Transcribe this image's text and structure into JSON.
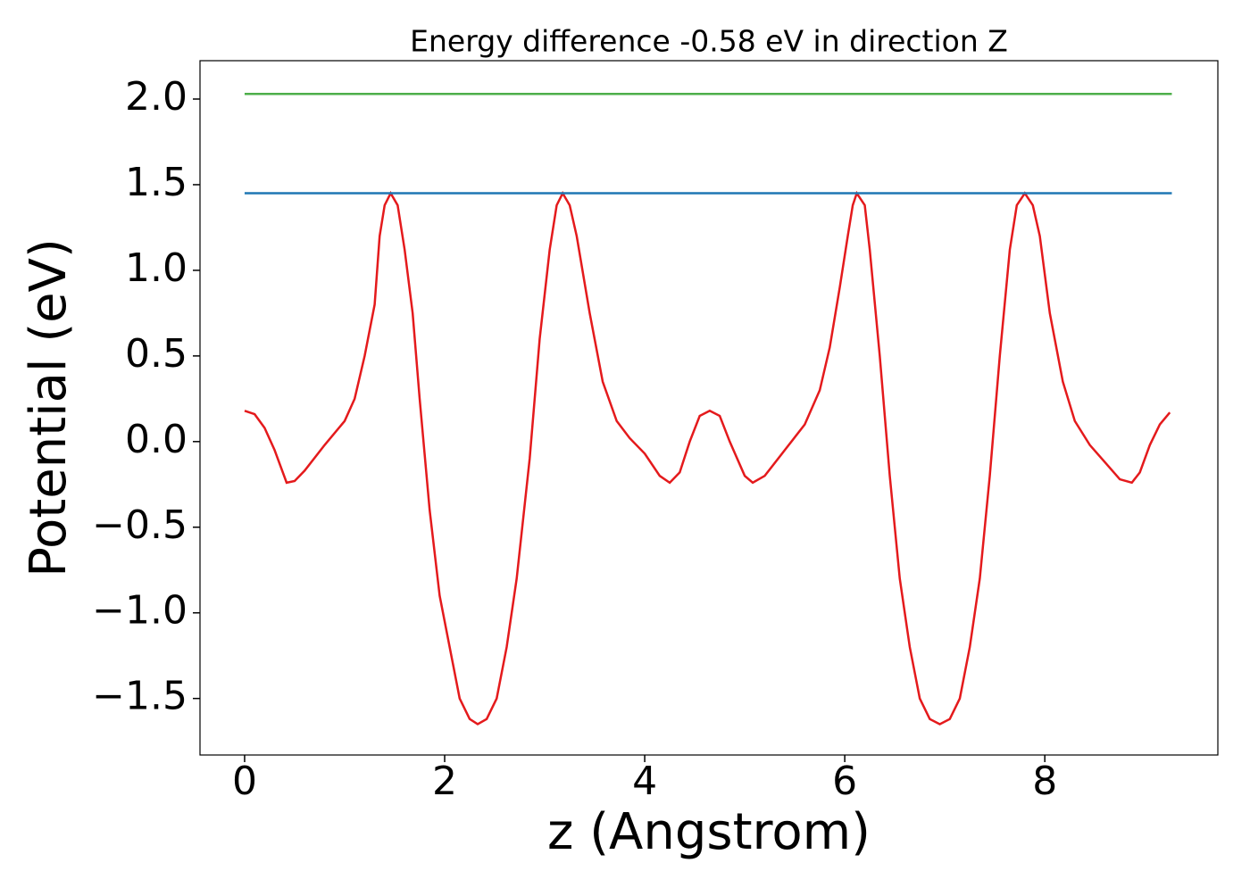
{
  "chart_data": {
    "type": "line",
    "title": "Energy difference -0.58 eV in direction Z",
    "xlabel": "z (Angstrom)",
    "ylabel": "Potential (eV)",
    "xlim": [
      -0.446,
      9.73
    ],
    "ylim": [
      -1.83,
      2.224
    ],
    "xticks": [
      0,
      2,
      4,
      6,
      8
    ],
    "yticks": [
      {
        "value": -1.5,
        "label": "−1.5"
      },
      {
        "value": -1.0,
        "label": "−1.0"
      },
      {
        "value": -0.5,
        "label": "−0.5"
      },
      {
        "value": 0,
        "label": "0.0"
      },
      {
        "value": 0.5,
        "label": "0.5"
      },
      {
        "value": 1.0,
        "label": "1.0"
      },
      {
        "value": 1.5,
        "label": "1.5"
      },
      {
        "value": 2.0,
        "label": "2.0"
      }
    ],
    "grid": false,
    "series": [
      {
        "color": "#e41a1c",
        "x": [
          0,
          0.1,
          0.2,
          0.3,
          0.42,
          0.5,
          0.6,
          0.8,
          1.0,
          1.1,
          1.2,
          1.3,
          1.35,
          1.4,
          1.46,
          1.53,
          1.6,
          1.68,
          1.75,
          1.85,
          1.95,
          2.05,
          2.15,
          2.25,
          2.33,
          2.42,
          2.52,
          2.62,
          2.72,
          2.85,
          2.95,
          3.05,
          3.12,
          3.18,
          3.25,
          3.32,
          3.45,
          3.58,
          3.72,
          3.85,
          4.0,
          4.15,
          4.25,
          4.35,
          4.45,
          4.55,
          4.65,
          4.75,
          4.85,
          5.0,
          5.08,
          5.2,
          5.4,
          5.6,
          5.75,
          5.85,
          5.95,
          6.03,
          6.08,
          6.12,
          6.2,
          6.25,
          6.35,
          6.45,
          6.55,
          6.65,
          6.75,
          6.85,
          6.95,
          7.05,
          7.15,
          7.25,
          7.35,
          7.45,
          7.55,
          7.65,
          7.72,
          7.8,
          7.88,
          7.95,
          8.05,
          8.18,
          8.3,
          8.45,
          8.6,
          8.75,
          8.87,
          8.95,
          9.05,
          9.15,
          9.25
        ],
        "values": [
          0.18,
          0.16,
          0.08,
          -0.05,
          -0.24,
          -0.23,
          -0.17,
          -0.02,
          0.12,
          0.25,
          0.5,
          0.8,
          1.2,
          1.38,
          1.45,
          1.38,
          1.12,
          0.75,
          0.25,
          -0.4,
          -0.9,
          -1.2,
          -1.5,
          -1.62,
          -1.65,
          -1.62,
          -1.5,
          -1.2,
          -0.8,
          -0.1,
          0.6,
          1.12,
          1.38,
          1.45,
          1.38,
          1.2,
          0.75,
          0.35,
          0.12,
          0.02,
          -0.07,
          -0.2,
          -0.24,
          -0.18,
          0.0,
          0.15,
          0.18,
          0.15,
          0.0,
          -0.2,
          -0.24,
          -0.2,
          -0.05,
          0.1,
          0.3,
          0.55,
          0.9,
          1.2,
          1.38,
          1.45,
          1.38,
          1.12,
          0.5,
          -0.2,
          -0.8,
          -1.2,
          -1.5,
          -1.62,
          -1.65,
          -1.62,
          -1.5,
          -1.2,
          -0.8,
          -0.2,
          0.5,
          1.12,
          1.38,
          1.45,
          1.38,
          1.2,
          0.75,
          0.35,
          0.12,
          -0.02,
          -0.12,
          -0.22,
          -0.24,
          -0.18,
          -0.02,
          0.1,
          0.17
        ]
      },
      {
        "color": "#1f77b4",
        "x": [
          0,
          9.27
        ],
        "values": [
          1.45,
          1.45
        ]
      },
      {
        "color": "#4daf4a",
        "x": [
          0,
          9.27
        ],
        "values": [
          2.03,
          2.03
        ]
      }
    ]
  }
}
